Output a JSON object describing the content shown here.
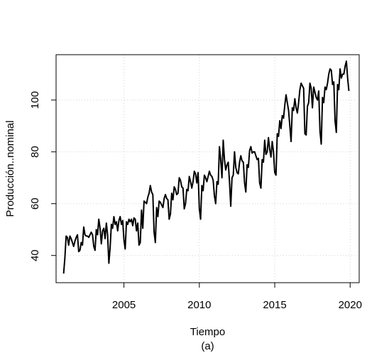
{
  "chart_data": {
    "type": "line",
    "title": "",
    "xlabel": "Tiempo",
    "sublabel": "(a)",
    "ylabel": "Producción..nominal",
    "xlim": [
      2000.5,
      2020.6
    ],
    "ylim": [
      29.5,
      117.5
    ],
    "xticks": [
      2005,
      2010,
      2015,
      2020
    ],
    "yticks": [
      40,
      60,
      80,
      100
    ],
    "grid": true,
    "series": [
      {
        "line_color": "#000000",
        "start": 2001.0,
        "frequency": 12,
        "values": [
          33.0,
          39.0,
          47.5,
          47.0,
          44.0,
          47.5,
          46.5,
          45.0,
          43.5,
          45.5,
          47.0,
          48.0,
          41.5,
          42.0,
          45.0,
          44.0,
          51.0,
          48.0,
          47.5,
          47.5,
          47.0,
          48.0,
          49.0,
          48.0,
          43.5,
          42.0,
          50.0,
          48.0,
          54.0,
          50.5,
          44.5,
          49.5,
          50.5,
          46.5,
          52.5,
          48.0,
          37.0,
          43.0,
          52.0,
          50.5,
          55.0,
          52.0,
          53.0,
          49.5,
          53.5,
          55.0,
          52.0,
          53.5,
          46.0,
          42.5,
          53.0,
          52.0,
          54.0,
          53.0,
          54.0,
          51.5,
          54.5,
          54.0,
          49.5,
          52.5,
          44.0,
          45.0,
          57.5,
          50.5,
          61.0,
          60.5,
          60.0,
          62.5,
          64.0,
          67.0,
          64.5,
          63.5,
          49.0,
          45.0,
          58.5,
          55.0,
          61.0,
          60.5,
          59.5,
          58.5,
          62.0,
          63.5,
          62.0,
          61.5,
          54.0,
          56.0,
          64.0,
          61.5,
          66.5,
          65.5,
          63.5,
          64.0,
          70.0,
          69.0,
          66.5,
          66.0,
          58.0,
          60.0,
          65.5,
          65.0,
          70.5,
          68.5,
          66.0,
          68.5,
          72.5,
          71.5,
          68.0,
          72.0,
          58.0,
          54.0,
          67.0,
          65.0,
          71.0,
          70.0,
          68.5,
          70.5,
          72.5,
          71.0,
          70.5,
          69.0,
          63.0,
          60.0,
          68.5,
          67.5,
          82.0,
          77.0,
          70.0,
          84.5,
          77.0,
          73.0,
          75.0,
          76.0,
          68.5,
          59.0,
          70.0,
          71.0,
          80.0,
          74.0,
          72.0,
          71.5,
          76.0,
          78.5,
          76.5,
          76.0,
          68.0,
          64.5,
          75.0,
          74.0,
          80.5,
          82.0,
          79.5,
          80.0,
          80.0,
          78.5,
          77.0,
          77.5,
          68.0,
          66.0,
          77.0,
          76.0,
          84.5,
          79.0,
          80.0,
          85.5,
          81.0,
          78.0,
          84.0,
          80.0,
          72.0,
          71.0,
          87.0,
          86.0,
          92.0,
          89.0,
          94.0,
          93.0,
          98.0,
          102.0,
          99.0,
          96.0,
          90.0,
          84.0,
          97.0,
          96.0,
          100.5,
          97.0,
          95.0,
          99.0,
          104.0,
          106.5,
          105.5,
          104.5,
          87.0,
          86.5,
          97.5,
          99.0,
          106.5,
          104.5,
          97.0,
          105.0,
          103.0,
          101.0,
          100.0,
          103.5,
          88.0,
          83.0,
          101.0,
          99.0,
          105.0,
          104.0,
          106.5,
          110.0,
          112.0,
          111.5,
          106.0,
          107.0,
          92.0,
          87.5,
          106.0,
          104.0,
          112.0,
          108.5,
          110.0,
          110.0,
          113.0,
          115.0,
          108.5,
          103.5
        ]
      }
    ]
  }
}
